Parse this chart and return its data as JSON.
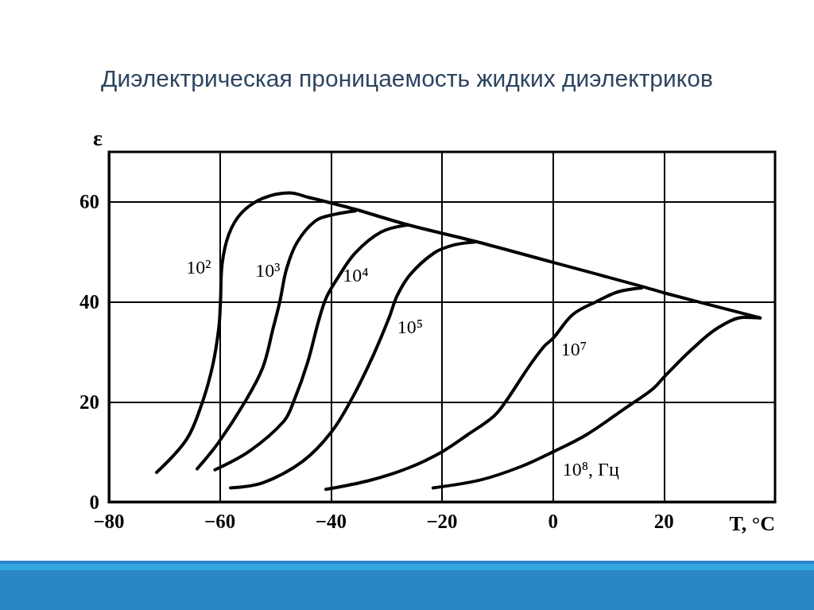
{
  "chart_data": {
    "type": "line",
    "title": "Диэлектрическая проницаемость жидких диэлектриков",
    "xlabel": "T, °C",
    "ylabel": "ε",
    "xlim": [
      -80,
      40
    ],
    "ylim": [
      0,
      70
    ],
    "xticks": [
      {
        "value": -80,
        "label": "−80"
      },
      {
        "value": -60,
        "label": "−60"
      },
      {
        "value": -40,
        "label": "−40"
      },
      {
        "value": -20,
        "label": "−20"
      },
      0,
      20
    ],
    "yticks": [
      0,
      20,
      40,
      60
    ],
    "grid": true,
    "marker": "none",
    "line_style": "solid",
    "series": [
      {
        "name": "10²",
        "color": "#000000",
        "x": [
          -71.4,
          -66,
          -63.2,
          -61.3,
          -60.2,
          -59.9,
          -59.6,
          -58.4,
          -56.1,
          -52.3,
          -47.5,
          -44,
          -40.4,
          -35.6,
          -26.1,
          -14,
          0,
          16,
          20,
          37.3
        ],
        "values": [
          5.9,
          12.5,
          19.8,
          27.3,
          34.8,
          40.1,
          47.6,
          53.5,
          57.8,
          60.7,
          61.8,
          60.9,
          59.9,
          58.5,
          55.4,
          52.1,
          47.9,
          43.1,
          41.8,
          36.8
        ]
      },
      {
        "name": "10³",
        "color": "#000000",
        "x": [
          -64.1,
          -60.3,
          -55.6,
          -52.3,
          -50.4,
          -49.2,
          -48,
          -46.1,
          -42.8,
          -39.4,
          -35.6
        ],
        "values": [
          6.6,
          11.8,
          19.8,
          26.8,
          34.8,
          40.1,
          46.6,
          51.9,
          56.2,
          57.5,
          58.2
        ]
      },
      {
        "name": "10⁴",
        "color": "#000000",
        "x": [
          -60.9,
          -54.6,
          -48.5,
          -46.6,
          -44.2,
          -42.3,
          -40.9,
          -39,
          -35.6,
          -30.9,
          -26.1
        ],
        "values": [
          6.4,
          10.2,
          16.1,
          20.4,
          27.9,
          35.9,
          40.7,
          44.4,
          49.8,
          54,
          55.4
        ]
      },
      {
        "name": "10⁵",
        "color": "#000000",
        "x": [
          -58.1,
          -52.3,
          -45.1,
          -39.9,
          -36.1,
          -32.3,
          -29.5,
          -28.1,
          -25.7,
          -21.4,
          -17.8,
          -14
        ],
        "values": [
          2.8,
          3.8,
          8.1,
          14,
          20.9,
          29.5,
          36.9,
          41.2,
          45.5,
          49.8,
          51.4,
          52
        ]
      },
      {
        "name": "10⁷",
        "color": "#000000",
        "x": [
          -40.9,
          -33,
          -26,
          -20,
          -15.4,
          -10.6,
          -8.3,
          -4.5,
          -1.6,
          0,
          3.6,
          7.9,
          11.7,
          16
        ],
        "values": [
          2.5,
          4.3,
          6.8,
          10,
          13.4,
          17.2,
          20.4,
          26.8,
          31.1,
          32.7,
          37.5,
          40.1,
          42,
          42.8
        ]
      },
      {
        "name": "10⁸, Гц",
        "color": "#000000",
        "x": [
          -21.6,
          -13,
          -5.9,
          0,
          6,
          13.1,
          17.9,
          20.2,
          25,
          29.7,
          34.5,
          37.3
        ],
        "values": [
          2.8,
          4.4,
          7,
          10,
          13.4,
          18.8,
          22.5,
          25.2,
          30.5,
          34.8,
          36.9,
          36.8
        ]
      }
    ]
  }
}
